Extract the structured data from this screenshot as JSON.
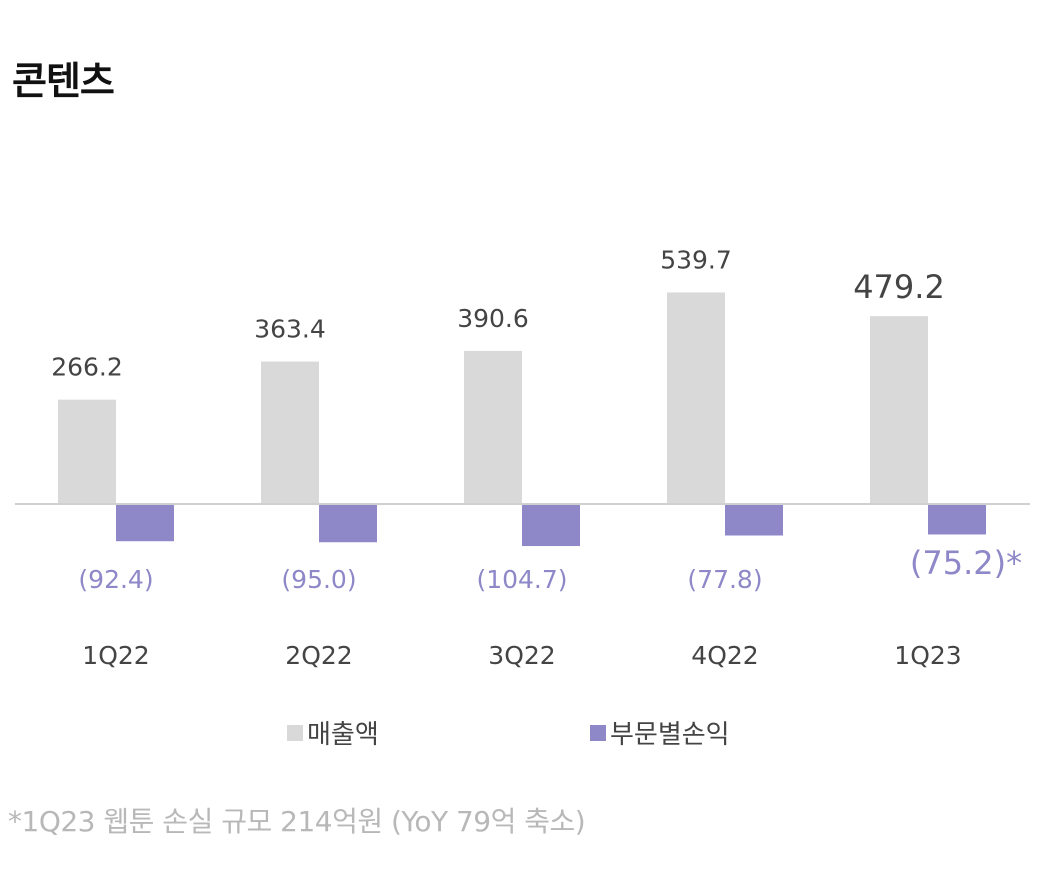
{
  "title": "콘텐츠",
  "chart_data": {
    "type": "bar",
    "categories": [
      "1Q22",
      "2Q22",
      "3Q22",
      "4Q22",
      "1Q23"
    ],
    "series": [
      {
        "name": "매출액",
        "color": "#d9d9d9",
        "values": [
          266.2,
          363.4,
          390.6,
          539.7,
          479.2
        ],
        "labels": [
          "266.2",
          "363.4",
          "390.6",
          "539.7",
          "479.2"
        ]
      },
      {
        "name": "부문별손익",
        "color": "#8e88c8",
        "values": [
          -92.4,
          -95.0,
          -104.7,
          -77.8,
          -75.2
        ],
        "labels": [
          "(92.4)",
          "(95.0)",
          "(104.7)",
          "(77.8)",
          "(75.2)*"
        ]
      }
    ],
    "legend_position": "bottom"
  },
  "legend": [
    {
      "label": "매출액",
      "color": "#d9d9d9"
    },
    {
      "label": "부문별손익",
      "color": "#8e88c8"
    }
  ],
  "footnote": "*1Q23 웹툰 손실 규모  214억원 (YoY 79억 축소)"
}
